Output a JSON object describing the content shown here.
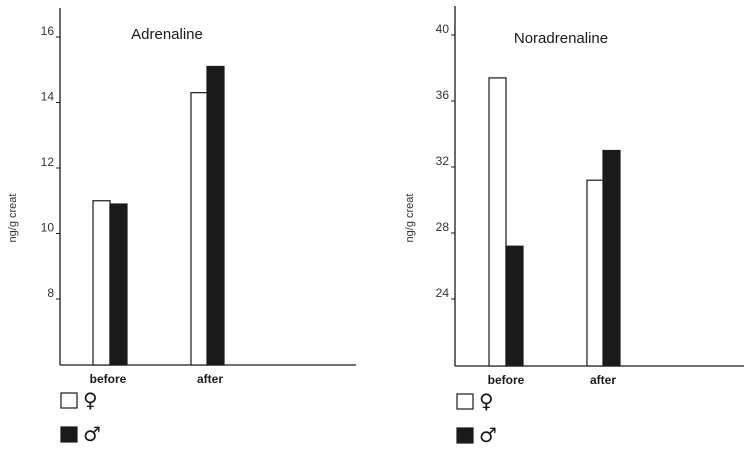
{
  "chart_data": [
    {
      "type": "bar",
      "title": "Adrenaline",
      "ylabel": "ng/g creat",
      "categories": [
        "before",
        "after"
      ],
      "yticks": [
        8,
        10,
        12,
        14,
        16
      ],
      "ylim": [
        6,
        17
      ],
      "series": [
        {
          "name": "♀",
          "color": "#ffffff",
          "values": [
            11.0,
            14.3
          ]
        },
        {
          "name": "♂",
          "color": "#1a1a1a",
          "values": [
            10.9,
            15.1
          ]
        }
      ]
    },
    {
      "type": "bar",
      "title": "Noradrenaline",
      "ylabel": "ng/g creat",
      "categories": [
        "before",
        "after"
      ],
      "yticks": [
        24,
        28,
        32,
        36,
        40
      ],
      "ylim": [
        20,
        42
      ],
      "series": [
        {
          "name": "♀",
          "color": "#ffffff",
          "values": [
            37.4,
            31.2
          ]
        },
        {
          "name": "♂",
          "color": "#1a1a1a",
          "values": [
            27.2,
            33.0
          ]
        }
      ]
    }
  ]
}
